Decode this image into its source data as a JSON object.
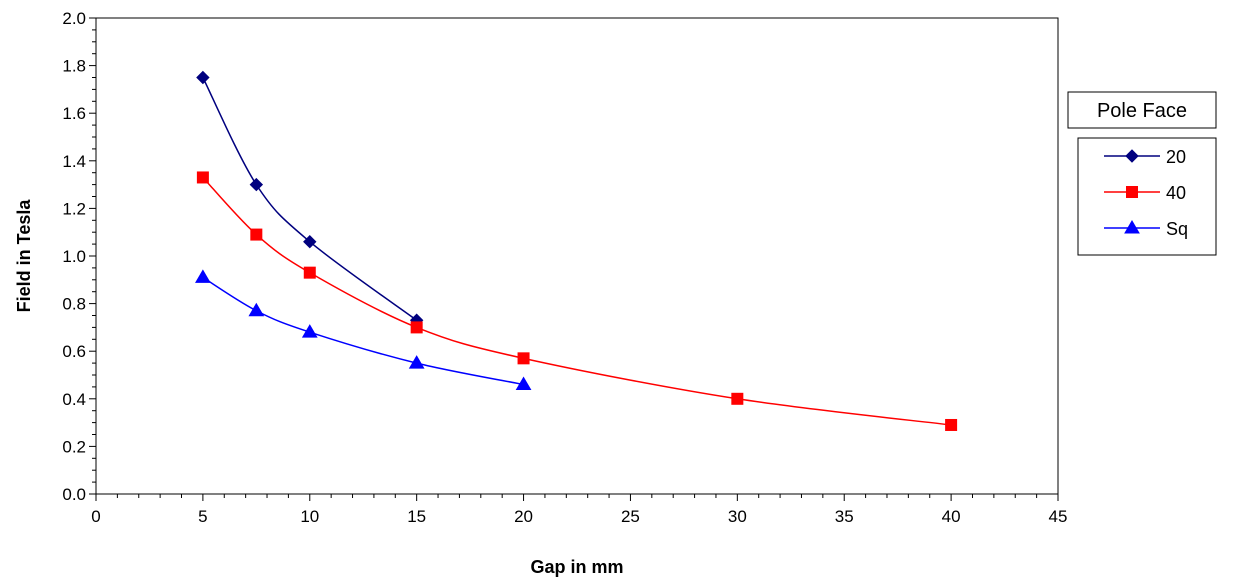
{
  "chart_data": {
    "type": "line",
    "title": "",
    "xlabel": "Gap in mm",
    "ylabel": "Field in Tesla",
    "xlim": [
      0,
      45
    ],
    "ylim": [
      0,
      2.0
    ],
    "x_ticks": [
      "0",
      "5",
      "10",
      "15",
      "20",
      "25",
      "30",
      "35",
      "40",
      "45"
    ],
    "y_ticks": [
      "0.0",
      "0.2",
      "0.4",
      "0.6",
      "0.8",
      "1.0",
      "1.2",
      "1.4",
      "1.6",
      "1.8",
      "2.0"
    ],
    "grid": false,
    "legend": {
      "title": "Pole Face",
      "placement": "right"
    },
    "series": [
      {
        "name": "20",
        "color": "#00007f",
        "marker": "diamond",
        "points": [
          [
            5,
            1.75
          ],
          [
            7.5,
            1.3
          ],
          [
            10,
            1.06
          ],
          [
            15,
            0.73
          ]
        ]
      },
      {
        "name": "40",
        "color": "#ff0000",
        "marker": "square",
        "points": [
          [
            5,
            1.33
          ],
          [
            7.5,
            1.09
          ],
          [
            10,
            0.93
          ],
          [
            15,
            0.7
          ],
          [
            20,
            0.57
          ],
          [
            30,
            0.4
          ],
          [
            40,
            0.29
          ]
        ]
      },
      {
        "name": "Sq",
        "color": "#0000ff",
        "marker": "triangle",
        "points": [
          [
            5,
            0.91
          ],
          [
            7.5,
            0.77
          ],
          [
            10,
            0.68
          ],
          [
            15,
            0.55
          ],
          [
            20,
            0.46
          ]
        ]
      }
    ]
  }
}
